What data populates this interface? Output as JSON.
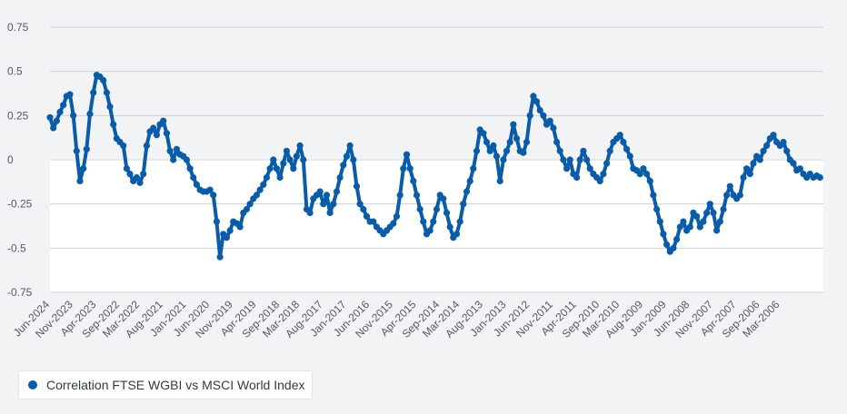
{
  "chart_data": {
    "type": "scatter",
    "x_order": "descending-dates",
    "x_range": [
      "Jun-2024",
      "Feb-2005"
    ],
    "ylim": [
      -0.75,
      0.75
    ],
    "yticks": [
      "0.75",
      "0.5",
      "0.25",
      "0",
      "-0.25",
      "-0.5",
      "-0.75"
    ],
    "ytick_values": [
      0.75,
      0.5,
      0.25,
      0,
      -0.25,
      -0.5,
      -0.75
    ],
    "xtick_labels": [
      "Jun-2024",
      "Nov-2023",
      "Apr-2023",
      "Sep-2022",
      "Mar-2022",
      "Aug-2021",
      "Jan-2021",
      "Jun-2020",
      "Nov-2019",
      "Apr-2019",
      "Sep-2018",
      "Mar-2018",
      "Aug-2017",
      "Jan-2017",
      "Jun-2016",
      "Nov-2015",
      "Apr-2015",
      "Sep-2014",
      "Mar-2014",
      "Aug-2013",
      "Jan-2013",
      "Jun-2012",
      "Nov-2011",
      "Apr-2011",
      "Sep-2010",
      "Mar-2010",
      "Aug-2009",
      "Jan-2009",
      "Jun-2008",
      "Nov-2007",
      "Apr-2007",
      "Sep-2006",
      "Mar-2006"
    ],
    "grid": true,
    "legend_position": "bottom-left",
    "series": [
      {
        "name": "Correlation FTSE WGBI vs MSCI World Index",
        "color": "#0a5ca8",
        "points": [
          [
            "Jun-2024",
            0.24
          ],
          [
            "May-2024",
            0.18
          ],
          [
            "Apr-2024",
            0.22
          ],
          [
            "Mar-2024",
            0.27
          ],
          [
            "Feb-2024",
            0.31
          ],
          [
            "Jan-2024",
            0.36
          ],
          [
            "Dec-2023",
            0.37
          ],
          [
            "Nov-2023",
            0.25
          ],
          [
            "Oct-2023",
            0.05
          ],
          [
            "Sep-2023",
            -0.12
          ],
          [
            "Aug-2023",
            -0.05
          ],
          [
            "Jul-2023",
            0.06
          ],
          [
            "Jun-2023",
            0.26
          ],
          [
            "May-2023",
            0.38
          ],
          [
            "Apr-2023",
            0.48
          ],
          [
            "Mar-2023",
            0.47
          ],
          [
            "Feb-2023",
            0.45
          ],
          [
            "Jan-2023",
            0.38
          ],
          [
            "Dec-2022",
            0.3
          ],
          [
            "Nov-2022",
            0.2
          ],
          [
            "Oct-2022",
            0.12
          ],
          [
            "Sep-2022",
            0.1
          ],
          [
            "Aug-2022",
            0.08
          ],
          [
            "Jul-2022",
            -0.05
          ],
          [
            "Jun-2022",
            -0.08
          ],
          [
            "May-2022",
            -0.12
          ],
          [
            "Apr-2022",
            -0.1
          ],
          [
            "Mar-2022",
            -0.13
          ],
          [
            "Feb-2022",
            -0.08
          ],
          [
            "Jan-2022",
            0.08
          ],
          [
            "Dec-2021",
            0.16
          ],
          [
            "Nov-2021",
            0.18
          ],
          [
            "Oct-2021",
            0.14
          ],
          [
            "Sep-2021",
            0.2
          ],
          [
            "Aug-2021",
            0.22
          ],
          [
            "Jul-2021",
            0.15
          ],
          [
            "Jun-2021",
            0.05
          ],
          [
            "May-2021",
            0.0
          ],
          [
            "Apr-2021",
            0.06
          ],
          [
            "Mar-2021",
            0.03
          ],
          [
            "Feb-2021",
            0.02
          ],
          [
            "Jan-2021",
            0.0
          ],
          [
            "Dec-2020",
            -0.05
          ],
          [
            "Nov-2020",
            -0.1
          ],
          [
            "Oct-2020",
            -0.14
          ],
          [
            "Sep-2020",
            -0.17
          ],
          [
            "Aug-2020",
            -0.18
          ],
          [
            "Jul-2020",
            -0.18
          ],
          [
            "Jun-2020",
            -0.17
          ],
          [
            "May-2020",
            -0.2
          ],
          [
            "Apr-2020",
            -0.35
          ],
          [
            "Mar-2020",
            -0.55
          ],
          [
            "Feb-2020",
            -0.42
          ],
          [
            "Jan-2020",
            -0.44
          ],
          [
            "Dec-2019",
            -0.4
          ],
          [
            "Nov-2019",
            -0.35
          ],
          [
            "Oct-2019",
            -0.36
          ],
          [
            "Sep-2019",
            -0.38
          ],
          [
            "Aug-2019",
            -0.3
          ],
          [
            "Jul-2019",
            -0.28
          ],
          [
            "Jun-2019",
            -0.25
          ],
          [
            "May-2019",
            -0.22
          ],
          [
            "Apr-2019",
            -0.2
          ],
          [
            "Mar-2019",
            -0.17
          ],
          [
            "Feb-2019",
            -0.14
          ],
          [
            "Jan-2019",
            -0.1
          ],
          [
            "Dec-2018",
            -0.05
          ],
          [
            "Nov-2018",
            0.0
          ],
          [
            "Oct-2018",
            -0.05
          ],
          [
            "Sep-2018",
            -0.1
          ],
          [
            "Aug-2018",
            -0.02
          ],
          [
            "Jul-2018",
            0.05
          ],
          [
            "Jun-2018",
            0.0
          ],
          [
            "May-2018",
            -0.05
          ],
          [
            "Apr-2018",
            0.02
          ],
          [
            "Mar-2018",
            0.08
          ],
          [
            "Feb-2018",
            0.0
          ],
          [
            "Jan-2018",
            -0.28
          ],
          [
            "Dec-2017",
            -0.3
          ],
          [
            "Nov-2017",
            -0.22
          ],
          [
            "Oct-2017",
            -0.2
          ],
          [
            "Sep-2017",
            -0.18
          ],
          [
            "Aug-2017",
            -0.25
          ],
          [
            "Jul-2017",
            -0.2
          ],
          [
            "Jun-2017",
            -0.3
          ],
          [
            "May-2017",
            -0.25
          ],
          [
            "Apr-2017",
            -0.18
          ],
          [
            "Mar-2017",
            -0.1
          ],
          [
            "Feb-2017",
            -0.03
          ],
          [
            "Jan-2017",
            0.02
          ],
          [
            "Dec-2016",
            0.08
          ],
          [
            "Nov-2016",
            0.0
          ],
          [
            "Oct-2016",
            -0.15
          ],
          [
            "Sep-2016",
            -0.25
          ],
          [
            "Aug-2016",
            -0.28
          ],
          [
            "Jul-2016",
            -0.32
          ],
          [
            "Jun-2016",
            -0.35
          ],
          [
            "May-2016",
            -0.35
          ],
          [
            "Apr-2016",
            -0.38
          ],
          [
            "Mar-2016",
            -0.4
          ],
          [
            "Feb-2016",
            -0.42
          ],
          [
            "Jan-2016",
            -0.4
          ],
          [
            "Dec-2015",
            -0.38
          ],
          [
            "Nov-2015",
            -0.36
          ],
          [
            "Oct-2015",
            -0.32
          ],
          [
            "Sep-2015",
            -0.2
          ],
          [
            "Aug-2015",
            -0.05
          ],
          [
            "Jul-2015",
            0.03
          ],
          [
            "Jun-2015",
            -0.05
          ],
          [
            "May-2015",
            -0.12
          ],
          [
            "Apr-2015",
            -0.2
          ],
          [
            "Mar-2015",
            -0.28
          ],
          [
            "Feb-2015",
            -0.35
          ],
          [
            "Jan-2015",
            -0.42
          ],
          [
            "Dec-2014",
            -0.4
          ],
          [
            "Nov-2014",
            -0.35
          ],
          [
            "Oct-2014",
            -0.28
          ],
          [
            "Sep-2014",
            -0.2
          ],
          [
            "Aug-2014",
            -0.22
          ],
          [
            "Jul-2014",
            -0.3
          ],
          [
            "Jun-2014",
            -0.38
          ],
          [
            "May-2014",
            -0.44
          ],
          [
            "Apr-2014",
            -0.42
          ],
          [
            "Mar-2014",
            -0.35
          ],
          [
            "Feb-2014",
            -0.25
          ],
          [
            "Jan-2014",
            -0.18
          ],
          [
            "Dec-2013",
            -0.12
          ],
          [
            "Nov-2013",
            -0.05
          ],
          [
            "Oct-2013",
            0.05
          ],
          [
            "Sep-2013",
            0.17
          ],
          [
            "Aug-2013",
            0.15
          ],
          [
            "Jul-2013",
            0.1
          ],
          [
            "Jun-2013",
            0.05
          ],
          [
            "May-2013",
            0.08
          ],
          [
            "Apr-2013",
            0.02
          ],
          [
            "Mar-2013",
            -0.12
          ],
          [
            "Feb-2013",
            0.0
          ],
          [
            "Jan-2013",
            0.05
          ],
          [
            "Dec-2012",
            0.1
          ],
          [
            "Nov-2012",
            0.2
          ],
          [
            "Oct-2012",
            0.12
          ],
          [
            "Sep-2012",
            0.05
          ],
          [
            "Aug-2012",
            0.04
          ],
          [
            "Jul-2012",
            0.1
          ],
          [
            "Jun-2012",
            0.25
          ],
          [
            "May-2012",
            0.36
          ],
          [
            "Apr-2012",
            0.33
          ],
          [
            "Mar-2012",
            0.28
          ],
          [
            "Feb-2012",
            0.25
          ],
          [
            "Jan-2012",
            0.2
          ],
          [
            "Dec-2011",
            0.22
          ],
          [
            "Nov-2011",
            0.18
          ],
          [
            "Oct-2011",
            0.1
          ],
          [
            "Sep-2011",
            0.05
          ],
          [
            "Aug-2011",
            0.0
          ],
          [
            "Jul-2011",
            -0.05
          ],
          [
            "Jun-2011",
            0.0
          ],
          [
            "May-2011",
            -0.08
          ],
          [
            "Apr-2011",
            -0.1
          ],
          [
            "Mar-2011",
            0.0
          ],
          [
            "Feb-2011",
            0.05
          ],
          [
            "Jan-2011",
            0.0
          ],
          [
            "Dec-2010",
            -0.05
          ],
          [
            "Nov-2010",
            -0.08
          ],
          [
            "Oct-2010",
            -0.1
          ],
          [
            "Sep-2010",
            -0.12
          ],
          [
            "Aug-2010",
            -0.08
          ],
          [
            "Jul-2010",
            -0.02
          ],
          [
            "Jun-2010",
            0.05
          ],
          [
            "May-2010",
            0.1
          ],
          [
            "Apr-2010",
            0.12
          ],
          [
            "Mar-2010",
            0.14
          ],
          [
            "Feb-2010",
            0.1
          ],
          [
            "Jan-2010",
            0.06
          ],
          [
            "Dec-2009",
            0.02
          ],
          [
            "Nov-2009",
            -0.05
          ],
          [
            "Oct-2009",
            -0.06
          ],
          [
            "Sep-2009",
            -0.08
          ],
          [
            "Aug-2009",
            -0.05
          ],
          [
            "Jul-2009",
            -0.08
          ],
          [
            "Jun-2009",
            -0.12
          ],
          [
            "May-2009",
            -0.2
          ],
          [
            "Apr-2009",
            -0.28
          ],
          [
            "Mar-2009",
            -0.35
          ],
          [
            "Feb-2009",
            -0.42
          ],
          [
            "Jan-2009",
            -0.48
          ],
          [
            "Dec-2008",
            -0.52
          ],
          [
            "Nov-2008",
            -0.5
          ],
          [
            "Oct-2008",
            -0.45
          ],
          [
            "Sep-2008",
            -0.38
          ],
          [
            "Aug-2008",
            -0.35
          ],
          [
            "Jul-2008",
            -0.4
          ],
          [
            "Jun-2008",
            -0.38
          ],
          [
            "May-2008",
            -0.3
          ],
          [
            "Apr-2008",
            -0.32
          ],
          [
            "Mar-2008",
            -0.38
          ],
          [
            "Feb-2008",
            -0.35
          ],
          [
            "Jan-2008",
            -0.3
          ],
          [
            "Dec-2007",
            -0.25
          ],
          [
            "Nov-2007",
            -0.3
          ],
          [
            "Oct-2007",
            -0.4
          ],
          [
            "Sep-2007",
            -0.35
          ],
          [
            "Aug-2007",
            -0.28
          ],
          [
            "Jul-2007",
            -0.2
          ],
          [
            "Jun-2007",
            -0.15
          ],
          [
            "May-2007",
            -0.2
          ],
          [
            "Apr-2007",
            -0.22
          ],
          [
            "Mar-2007",
            -0.2
          ],
          [
            "Feb-2007",
            -0.1
          ],
          [
            "Jan-2007",
            -0.05
          ],
          [
            "Dec-2006",
            -0.08
          ],
          [
            "Nov-2006",
            -0.02
          ],
          [
            "Oct-2006",
            0.02
          ],
          [
            "Sep-2006",
            0.0
          ],
          [
            "Aug-2006",
            0.05
          ],
          [
            "Jul-2006",
            0.08
          ],
          [
            "Jun-2006",
            0.12
          ],
          [
            "May-2006",
            0.14
          ],
          [
            "Apr-2006",
            0.1
          ],
          [
            "Mar-2006",
            0.08
          ],
          [
            "Feb-2006",
            0.1
          ],
          [
            "Jan-2006",
            0.05
          ],
          [
            "Dec-2005",
            0.0
          ],
          [
            "Nov-2005",
            -0.02
          ],
          [
            "Oct-2005",
            -0.06
          ],
          [
            "Sep-2005",
            -0.05
          ],
          [
            "Aug-2005",
            -0.08
          ],
          [
            "Jul-2005",
            -0.1
          ],
          [
            "Jun-2005",
            -0.08
          ],
          [
            "May-2005",
            -0.1
          ],
          [
            "Apr-2005",
            -0.09
          ],
          [
            "Mar-2005",
            -0.1
          ]
        ]
      }
    ]
  },
  "legend": {
    "label": "Correlation FTSE WGBI vs MSCI World Index",
    "color": "#0a5ca8"
  }
}
